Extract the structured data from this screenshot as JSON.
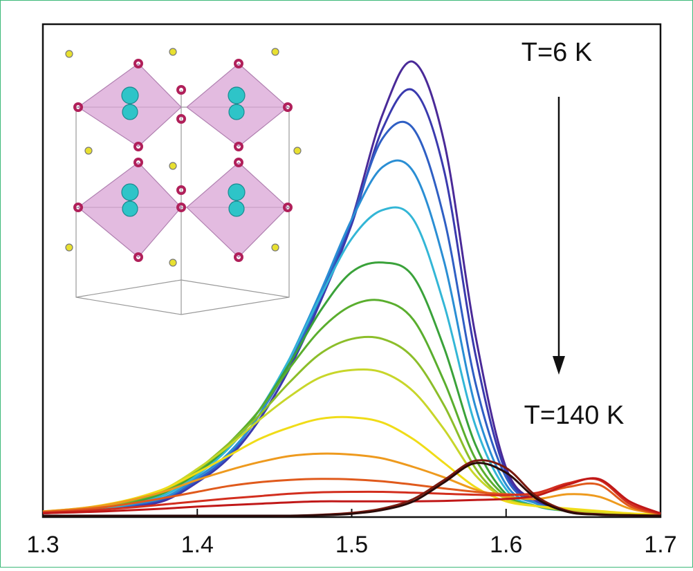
{
  "chart_data": {
    "type": "line",
    "annotations": [
      "T=6 K",
      "T=140 K"
    ],
    "x": [
      1.3,
      1.32,
      1.34,
      1.36,
      1.38,
      1.4,
      1.42,
      1.44,
      1.46,
      1.48,
      1.5,
      1.52,
      1.54,
      1.56,
      1.58,
      1.6,
      1.62,
      1.64,
      1.66,
      1.68,
      1.7
    ],
    "xlim": [
      1.3,
      1.7
    ],
    "xticks": [
      1.3,
      1.4,
      1.5,
      1.6,
      1.7
    ],
    "ylim": [
      0,
      100
    ],
    "series": [
      {
        "color": "#4a2a98",
        "values": [
          0.5,
          0.8,
          1.3,
          2,
          3.3,
          7,
          12,
          20,
          31,
          45,
          62,
          84,
          95,
          78,
          38,
          10,
          3,
          1,
          0.5,
          0.3,
          0.2
        ]
      },
      {
        "color": "#3a3aae",
        "values": [
          0.5,
          0.8,
          1.3,
          2.1,
          3.5,
          7,
          12,
          20,
          31,
          45,
          61,
          81,
          89,
          72,
          34,
          9,
          3,
          1,
          0.5,
          0.3,
          0.2
        ]
      },
      {
        "color": "#2f5fc4",
        "values": [
          0.5,
          0.9,
          1.4,
          2.3,
          3.8,
          7.5,
          12.5,
          21,
          32,
          46,
          62,
          79,
          81,
          62,
          28,
          8,
          2.5,
          1,
          0.5,
          0.3,
          0.2
        ]
      },
      {
        "color": "#2a8ed4",
        "values": [
          0.6,
          0.9,
          1.5,
          2.5,
          4,
          8,
          13,
          21,
          33,
          47,
          62,
          73,
          72,
          53,
          23,
          6.5,
          2.5,
          1,
          0.5,
          0.3,
          0.2
        ]
      },
      {
        "color": "#33b6d6",
        "values": [
          0.6,
          1,
          1.6,
          2.7,
          4.5,
          8.5,
          14,
          22,
          33,
          46,
          58,
          64,
          62,
          44,
          19,
          5.5,
          2,
          1,
          0.5,
          0.3,
          0.2
        ]
      },
      {
        "color": "#3aa23a",
        "values": [
          0.7,
          1.1,
          1.8,
          3,
          5,
          9,
          14.5,
          22,
          32,
          43,
          51,
          53,
          50,
          35,
          15,
          4.5,
          2,
          1,
          0.5,
          0.3,
          0.2
        ]
      },
      {
        "color": "#5aae2e",
        "values": [
          0.7,
          1.1,
          1.9,
          3.2,
          5.3,
          9.3,
          15,
          22,
          31,
          39,
          44,
          45,
          41,
          28,
          12,
          4,
          2,
          1,
          0.6,
          0.3,
          0.2
        ]
      },
      {
        "color": "#8cbe2a",
        "values": [
          0.8,
          1.2,
          2,
          3.4,
          5.6,
          9.6,
          15,
          21,
          28,
          34,
          37,
          37,
          33,
          23,
          10,
          3.5,
          2,
          1,
          0.6,
          0.3,
          0.2
        ]
      },
      {
        "color": "#c8d62a",
        "values": [
          0.8,
          1.3,
          2.1,
          3.6,
          5.8,
          9.8,
          14.5,
          20,
          25,
          29,
          30.5,
          30,
          26,
          18,
          8.5,
          3.5,
          2,
          1.2,
          0.7,
          0.4,
          0.2
        ]
      },
      {
        "color": "#f0dc18",
        "values": [
          0.9,
          1.4,
          2.3,
          3.7,
          5.8,
          9,
          12.5,
          16,
          18.5,
          20.3,
          20.6,
          19.5,
          16,
          11,
          6,
          3,
          2,
          1.5,
          1,
          0.5,
          0.2
        ]
      },
      {
        "color": "#ee9a1e",
        "values": [
          0.9,
          1.4,
          2.2,
          3.5,
          5.2,
          7.5,
          9.5,
          11.2,
          12.5,
          13,
          12.8,
          12,
          10.2,
          8,
          5.5,
          4,
          3.5,
          4.5,
          4,
          1.5,
          0.3
        ]
      },
      {
        "color": "#e05a1c",
        "values": [
          0.8,
          1.2,
          1.8,
          2.7,
          3.8,
          5,
          6.2,
          7,
          7.5,
          7.7,
          7.6,
          7.2,
          6.5,
          5.7,
          5,
          4.5,
          4.5,
          6,
          6.5,
          2,
          0.3
        ]
      },
      {
        "color": "#d22e1e",
        "values": [
          0.6,
          0.9,
          1.3,
          1.8,
          2.4,
          3,
          3.6,
          4.1,
          4.6,
          4.9,
          5,
          5,
          4.8,
          4.6,
          4.4,
          4.3,
          4.8,
          6.8,
          7.5,
          2.5,
          0.4
        ]
      },
      {
        "color": "#c01818",
        "values": [
          0.5,
          0.7,
          0.9,
          1.2,
          1.5,
          1.9,
          2.2,
          2.5,
          2.8,
          3,
          3,
          3,
          3,
          3.1,
          3.3,
          3.5,
          4.2,
          6.5,
          7.7,
          3,
          0.5
        ]
      },
      {
        "color": "#7a1a10",
        "values": [
          0,
          0,
          0,
          0,
          0,
          0,
          0,
          0,
          0,
          0.2,
          0.6,
          1.5,
          3.5,
          7.5,
          11.5,
          10,
          4,
          1,
          0.3,
          0.1,
          0
        ]
      },
      {
        "color": "#2a0a08",
        "values": [
          0,
          0,
          0,
          0,
          0,
          0,
          0,
          0,
          0,
          0.1,
          0.4,
          1.2,
          3,
          7,
          11,
          9,
          3.5,
          0.8,
          0.2,
          0.1,
          0
        ]
      }
    ]
  }
}
